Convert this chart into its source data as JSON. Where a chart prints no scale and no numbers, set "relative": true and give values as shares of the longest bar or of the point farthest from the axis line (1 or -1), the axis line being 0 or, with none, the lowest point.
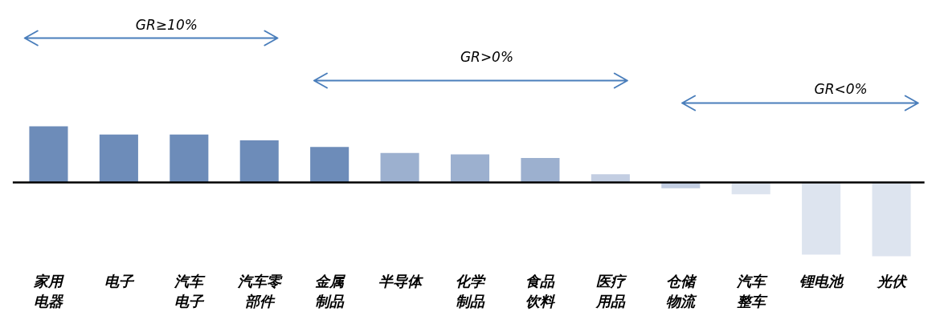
{
  "chart_data": {
    "type": "bar",
    "relative": true,
    "categories": [
      "家用电器",
      "电子",
      "汽车电子",
      "汽车零部件",
      "金属制品",
      "半导体",
      "化学制品",
      "食品饮料",
      "医疗用品",
      "仓储物流",
      "汽车整车",
      "锂电池",
      "光伏"
    ],
    "values": [
      0.76,
      0.65,
      0.65,
      0.57,
      0.48,
      0.4,
      0.38,
      0.33,
      0.11,
      -0.08,
      -0.16,
      -0.98,
      -1
    ],
    "colors": [
      "#6d8cb9",
      "#6d8cb9",
      "#6d8cb9",
      "#6d8cb9",
      "#6d8cb9",
      "#9cb0cf",
      "#9cb0cf",
      "#9cb0cf",
      "#c3cee2",
      "#c3cee2",
      "#dde4ef",
      "#dde4ef",
      "#dde4ef"
    ],
    "annotations": [
      "GR≥10%",
      "GR>0%",
      "GR<0%"
    ]
  }
}
